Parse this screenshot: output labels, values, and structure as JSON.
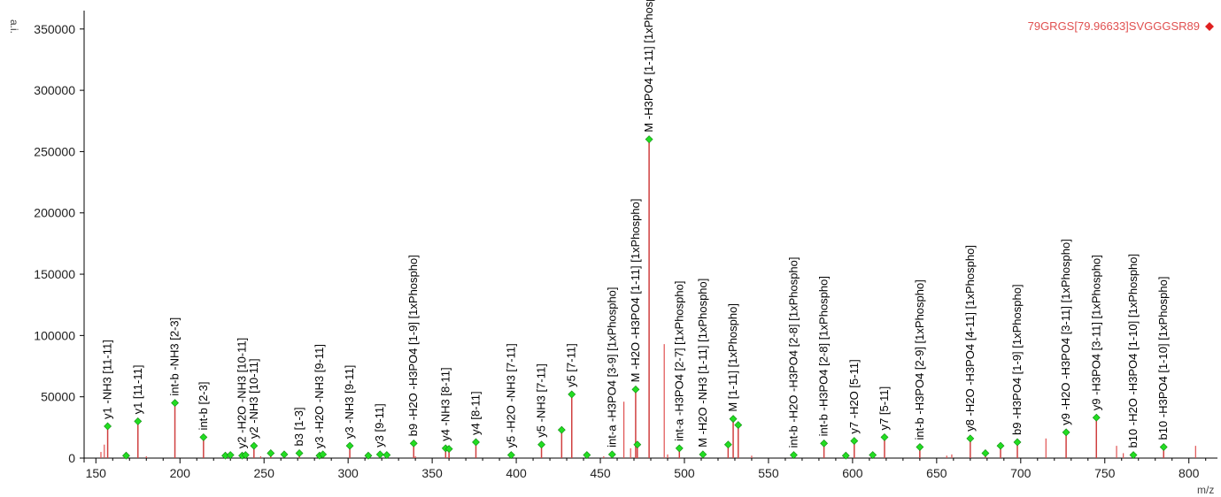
{
  "chart_data": {
    "type": "bar",
    "title": "79GRGS[79.96633]SVGGGSR89",
    "ylabel": "a.i.",
    "xlabel": "m/z",
    "xlim": [
      143,
      817
    ],
    "ylim": [
      0,
      365000
    ],
    "x_ticks": [
      150,
      200,
      250,
      300,
      350,
      400,
      450,
      500,
      550,
      600,
      650,
      700,
      750,
      800
    ],
    "y_ticks": [
      0,
      50000,
      100000,
      150000,
      200000,
      250000,
      300000,
      350000
    ],
    "colors": {
      "peak": "#e05050",
      "annotated_peak": "#d04040",
      "marker": "#22dd22",
      "marker_edge": "#118811",
      "title": "#e05050"
    },
    "unlabeled_peaks": [
      {
        "x": 153,
        "y": 5000
      },
      {
        "x": 155,
        "y": 11000
      },
      {
        "x": 167,
        "y": 2000
      },
      {
        "x": 180,
        "y": 1500
      },
      {
        "x": 248,
        "y": 1500
      },
      {
        "x": 340,
        "y": 1500
      },
      {
        "x": 452,
        "y": 1500
      },
      {
        "x": 464,
        "y": 46000
      },
      {
        "x": 468,
        "y": 8000
      },
      {
        "x": 488,
        "y": 93000
      },
      {
        "x": 490,
        "y": 3000
      },
      {
        "x": 540,
        "y": 2000
      },
      {
        "x": 656,
        "y": 2000
      },
      {
        "x": 659,
        "y": 3000
      },
      {
        "x": 715,
        "y": 16000
      },
      {
        "x": 757,
        "y": 10000
      },
      {
        "x": 761,
        "y": 4000
      },
      {
        "x": 804,
        "y": 10000
      }
    ],
    "annotated_peaks": [
      {
        "x": 157,
        "y": 26000,
        "label": "y1 -NH3 [11-11]"
      },
      {
        "x": 168,
        "y": 2000,
        "label": ""
      },
      {
        "x": 175,
        "y": 30000,
        "label": "y1 [11-11]"
      },
      {
        "x": 197,
        "y": 45000,
        "label": "int-b -NH3 [2-3]"
      },
      {
        "x": 214,
        "y": 17000,
        "label": "int-b [2-3]"
      },
      {
        "x": 227,
        "y": 2000,
        "label": ""
      },
      {
        "x": 230,
        "y": 2500,
        "label": ""
      },
      {
        "x": 237,
        "y": 2000,
        "label": "y2 -H2O -NH3 [10-11]"
      },
      {
        "x": 239,
        "y": 2500,
        "label": ""
      },
      {
        "x": 244,
        "y": 10000,
        "label": "y2 -NH3 [10-11]"
      },
      {
        "x": 254,
        "y": 4000,
        "label": ""
      },
      {
        "x": 262,
        "y": 3000,
        "label": ""
      },
      {
        "x": 271,
        "y": 4000,
        "label": "b3 [1-3]"
      },
      {
        "x": 283,
        "y": 2000,
        "label": "y3 -H2O -NH3 [9-11]"
      },
      {
        "x": 285,
        "y": 3000,
        "label": ""
      },
      {
        "x": 301,
        "y": 10000,
        "label": "y3 -NH3 [9-11]"
      },
      {
        "x": 312,
        "y": 2000,
        "label": ""
      },
      {
        "x": 319,
        "y": 3000,
        "label": "y3 [9-11]"
      },
      {
        "x": 323,
        "y": 2500,
        "label": ""
      },
      {
        "x": 339,
        "y": 12000,
        "label": "b9 -H2O -H3PO4 [1-9] [1xPhospho]"
      },
      {
        "x": 358,
        "y": 8000,
        "label": "y4 -NH3 [8-11]"
      },
      {
        "x": 360,
        "y": 7500,
        "label": ""
      },
      {
        "x": 376,
        "y": 13000,
        "label": "y4 [8-11]"
      },
      {
        "x": 397,
        "y": 2500,
        "label": "y5 -H2O -NH3 [7-11]"
      },
      {
        "x": 415,
        "y": 11000,
        "label": "y5 -NH3 [7-11]"
      },
      {
        "x": 427,
        "y": 23000,
        "label": ""
      },
      {
        "x": 433,
        "y": 52000,
        "label": "y5 [7-11]"
      },
      {
        "x": 442,
        "y": 2500,
        "label": ""
      },
      {
        "x": 457,
        "y": 3000,
        "label": "int-a -H3PO4 [3-9] [1xPhospho]"
      },
      {
        "x": 471,
        "y": 56000,
        "label": "M -H2O -H3PO4 [1-11] [1xPhospho]"
      },
      {
        "x": 472,
        "y": 11000,
        "label": ""
      },
      {
        "x": 479,
        "y": 260000,
        "label": "M -H3PO4 [1-11] [1xPhospho]"
      },
      {
        "x": 497,
        "y": 8000,
        "label": "int-a -H3PO4 [2-7] [1xPhospho]"
      },
      {
        "x": 511,
        "y": 3000,
        "label": "M -H2O -NH3 [1-11] [1xPhospho]"
      },
      {
        "x": 526,
        "y": 11000,
        "label": ""
      },
      {
        "x": 529,
        "y": 32000,
        "label": "M [1-11] [1xPhospho]"
      },
      {
        "x": 532,
        "y": 27000,
        "label": ""
      },
      {
        "x": 565,
        "y": 2500,
        "label": "int-b -H2O -H3PO4 [2-8] [1xPhospho]"
      },
      {
        "x": 583,
        "y": 12000,
        "label": "int-b -H3PO4 [2-8] [1xPhospho]"
      },
      {
        "x": 596,
        "y": 2000,
        "label": ""
      },
      {
        "x": 601,
        "y": 14000,
        "label": "y7 -H2O [5-11]"
      },
      {
        "x": 612,
        "y": 2500,
        "label": ""
      },
      {
        "x": 619,
        "y": 17000,
        "label": "y7 [5-11]"
      },
      {
        "x": 640,
        "y": 9000,
        "label": "int-b -H3PO4 [2-9] [1xPhospho]"
      },
      {
        "x": 670,
        "y": 16000,
        "label": "y8 -H2O -H3PO4 [4-11] [1xPhospho]"
      },
      {
        "x": 679,
        "y": 4000,
        "label": ""
      },
      {
        "x": 688,
        "y": 10000,
        "label": ""
      },
      {
        "x": 698,
        "y": 13000,
        "label": "b9 -H3PO4 [1-9] [1xPhospho]"
      },
      {
        "x": 727,
        "y": 21000,
        "label": "y9 -H2O -H3PO4 [3-11] [1xPhospho]"
      },
      {
        "x": 745,
        "y": 33000,
        "label": "y9 -H3PO4 [3-11] [1xPhospho]"
      },
      {
        "x": 767,
        "y": 2500,
        "label": "b10 -H2O -H3PO4 [1-10] [1xPhospho]"
      },
      {
        "x": 785,
        "y": 9000,
        "label": "b10 -H3PO4 [1-10] [1xPhospho]"
      }
    ]
  }
}
